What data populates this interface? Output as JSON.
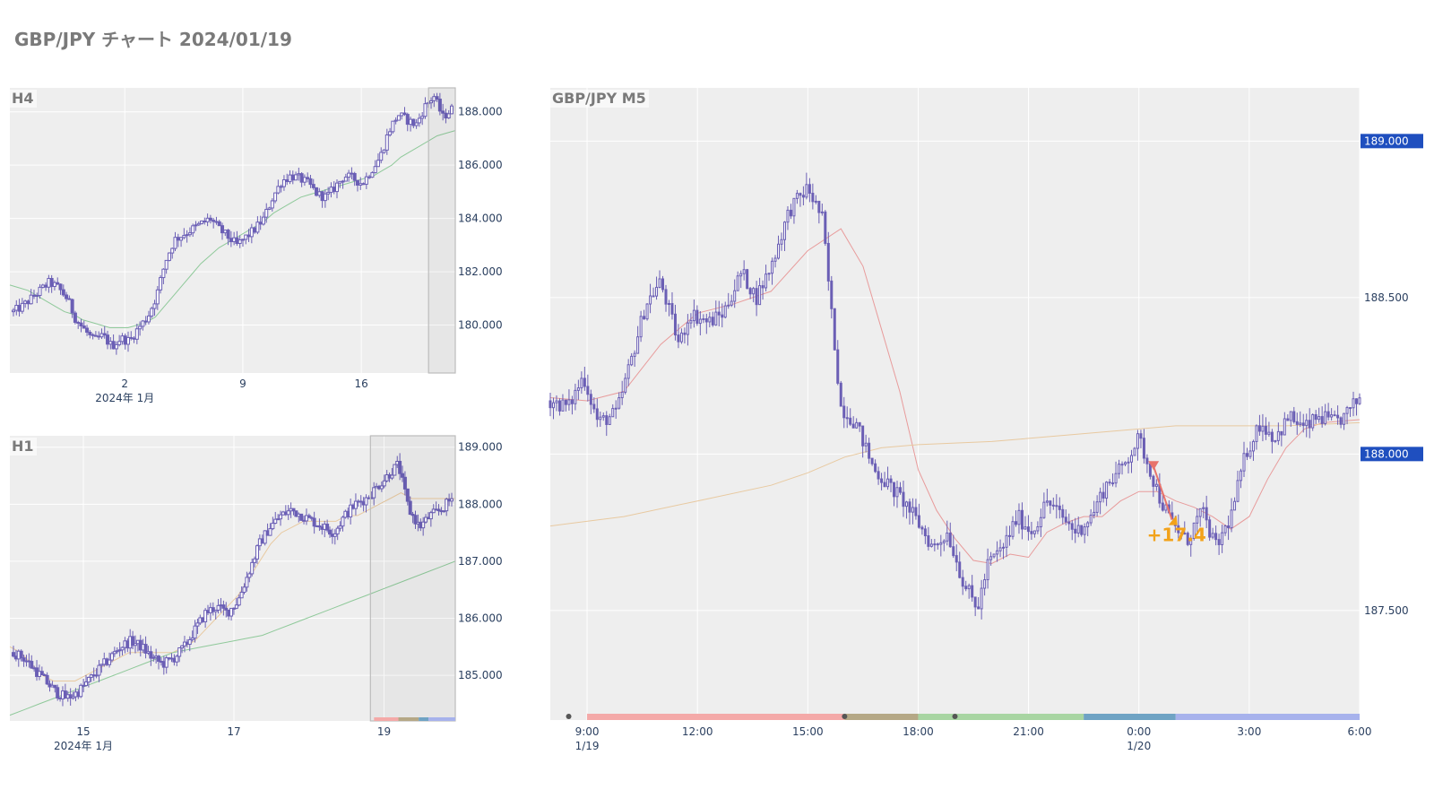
{
  "page": {
    "title": "GBP/JPY チャート 2024/01/19"
  },
  "colors": {
    "candle": "#6b5fb5",
    "plot_bg": "#eeeeee",
    "grid": "#ffffff",
    "ma_green": "#8fc99a",
    "ma_orange": "#e8c9a0",
    "ma_red": "#e89b9b",
    "price_badge": "#1f4fbf",
    "annotation": "#f2a21a",
    "entry_marker": "#e8736b",
    "session_bar": [
      "#f4a9a8",
      "#b5a886",
      "#a8d5a2",
      "#6fa3c4",
      "#a7b2ec"
    ]
  },
  "chart_data": [
    {
      "id": "h4",
      "type": "candlestick",
      "title": "H4",
      "xlabel": "",
      "ylabel": "",
      "x_tick_labels": [
        "2",
        "9",
        "16"
      ],
      "x_sublabel": "2024年 1月",
      "y_tick_labels": [
        "188.000",
        "186.000",
        "184.000",
        "182.000",
        "180.000"
      ],
      "ylim": [
        178.2,
        188.9
      ],
      "legend": "none",
      "grid": true,
      "close_path": [
        180.5,
        180.7,
        181.0,
        181.3,
        181.6,
        181.4,
        181.0,
        180.2,
        179.8,
        179.4,
        179.6,
        179.2,
        179.5,
        179.4,
        179.9,
        180.3,
        181.1,
        182.4,
        183.2,
        183.4,
        183.6,
        183.8,
        184.0,
        183.6,
        183.3,
        183.0,
        183.3,
        183.6,
        184.0,
        184.8,
        185.4,
        185.6,
        185.5,
        185.3,
        184.9,
        184.8,
        185.2,
        185.6,
        185.5,
        185.3,
        185.8,
        186.3,
        187.3,
        187.9,
        187.7,
        187.5,
        188.2,
        188.6,
        187.8,
        188.1
      ],
      "ma": {
        "color": "green",
        "path": [
          181.5,
          181.4,
          181.3,
          181.1,
          180.9,
          180.7,
          180.5,
          180.4,
          180.2,
          180.1,
          180.0,
          179.9,
          179.9,
          179.9,
          180.0,
          180.1,
          180.3,
          180.7,
          181.1,
          181.5,
          181.9,
          182.3,
          182.6,
          182.9,
          183.1,
          183.3,
          183.5,
          183.7,
          183.9,
          184.2,
          184.4,
          184.6,
          184.8,
          184.9,
          185.0,
          185.1,
          185.2,
          185.3,
          185.4,
          185.5,
          185.6,
          185.8,
          186.0,
          186.3,
          186.5,
          186.7,
          186.9,
          187.1,
          187.2,
          187.3
        ]
      },
      "highlight_range": [
        47,
        50
      ]
    },
    {
      "id": "h1",
      "type": "candlestick",
      "title": "H1",
      "xlabel": "",
      "ylabel": "",
      "x_tick_labels": [
        "15",
        "17",
        "19"
      ],
      "x_sublabel": "2024年 1月",
      "y_tick_labels": [
        "189.000",
        "188.000",
        "187.000",
        "186.000",
        "185.000"
      ],
      "ylim": [
        184.2,
        189.2
      ],
      "legend": "none",
      "grid": true,
      "close_path": [
        185.4,
        185.3,
        185.1,
        184.9,
        184.7,
        184.6,
        184.7,
        184.9,
        185.1,
        185.3,
        185.5,
        185.6,
        185.5,
        185.3,
        185.2,
        185.3,
        185.5,
        185.8,
        186.1,
        186.2,
        186.1,
        186.3,
        186.8,
        187.3,
        187.6,
        187.8,
        187.9,
        187.8,
        187.7,
        187.6,
        187.5,
        187.8,
        188.0,
        188.1,
        188.3,
        188.5,
        188.7,
        187.9,
        187.6,
        187.8,
        187.9,
        188.1
      ],
      "ma": [
        {
          "color": "orange",
          "path": [
            185.5,
            185.4,
            185.2,
            185.0,
            184.9,
            184.9,
            184.9,
            185.0,
            185.1,
            185.2,
            185.3,
            185.4,
            185.4,
            185.4,
            185.4,
            185.4,
            185.5,
            185.6,
            185.8,
            186.0,
            186.2,
            186.4,
            186.7,
            187.0,
            187.3,
            187.5,
            187.6,
            187.7,
            187.7,
            187.7,
            187.7,
            187.8,
            187.8,
            187.9,
            188.0,
            188.1,
            188.2,
            188.1,
            188.1,
            188.1,
            188.1,
            188.1
          ]
        },
        {
          "color": "green",
          "path": [
            184.3,
            184.4,
            184.5,
            184.6,
            184.7,
            184.8,
            184.9,
            185.0,
            185.1,
            185.2,
            185.3,
            185.4,
            185.45,
            185.5,
            185.55,
            185.6,
            185.65,
            185.7,
            185.8,
            185.9,
            186.0,
            186.1,
            186.2,
            186.3,
            186.4,
            186.5,
            186.6,
            186.7,
            186.8,
            186.9,
            187.0
          ]
        }
      ],
      "highlight_range": [
        34,
        41
      ],
      "session_bar": true
    },
    {
      "id": "m5",
      "type": "candlestick",
      "title": "GBP/JPY M5",
      "xlabel": "",
      "ylabel": "",
      "x_tick_labels": [
        "9:00",
        "12:00",
        "15:00",
        "18:00",
        "21:00",
        "0:00",
        "3:00",
        "6:00"
      ],
      "x_tick_sublabels": [
        "1/19",
        "",
        "",
        "",
        "",
        "1/20",
        "",
        ""
      ],
      "y_tick_labels": [
        "189.000",
        "188.500",
        "188.000",
        "187.500"
      ],
      "y_badges": [
        "189.000",
        "188.000"
      ],
      "ylim": [
        187.15,
        189.17
      ],
      "legend": "none",
      "grid": true,
      "time_range_hours": [
        8.0,
        30.0
      ],
      "close_path": [
        [
          8.0,
          188.17
        ],
        [
          8.5,
          188.15
        ],
        [
          8.9,
          188.25
        ],
        [
          9.3,
          188.1
        ],
        [
          9.8,
          188.13
        ],
        [
          10.2,
          188.3
        ],
        [
          10.6,
          188.48
        ],
        [
          11.0,
          188.55
        ],
        [
          11.5,
          188.35
        ],
        [
          11.8,
          188.45
        ],
        [
          12.3,
          188.42
        ],
        [
          12.7,
          188.45
        ],
        [
          13.2,
          188.58
        ],
        [
          13.6,
          188.5
        ],
        [
          14.0,
          188.6
        ],
        [
          14.5,
          188.78
        ],
        [
          15.0,
          188.85
        ],
        [
          15.4,
          188.75
        ],
        [
          15.6,
          188.5
        ],
        [
          15.9,
          188.15
        ],
        [
          16.3,
          188.1
        ],
        [
          16.8,
          187.95
        ],
        [
          17.2,
          187.9
        ],
        [
          17.6,
          187.85
        ],
        [
          18.0,
          187.78
        ],
        [
          18.4,
          187.7
        ],
        [
          18.8,
          187.75
        ],
        [
          19.2,
          187.6
        ],
        [
          19.6,
          187.5
        ],
        [
          19.9,
          187.65
        ],
        [
          20.3,
          187.7
        ],
        [
          20.7,
          187.8
        ],
        [
          21.1,
          187.75
        ],
        [
          21.5,
          187.85
        ],
        [
          21.9,
          187.8
        ],
        [
          22.3,
          187.75
        ],
        [
          22.7,
          187.8
        ],
        [
          23.1,
          187.9
        ],
        [
          23.5,
          187.95
        ],
        [
          24.0,
          188.05
        ],
        [
          24.3,
          187.95
        ],
        [
          24.6,
          187.85
        ],
        [
          24.9,
          187.78
        ],
        [
          25.3,
          187.72
        ],
        [
          25.7,
          187.82
        ],
        [
          26.1,
          187.7
        ],
        [
          26.5,
          187.8
        ],
        [
          26.9,
          188.0
        ],
        [
          27.3,
          188.1
        ],
        [
          27.7,
          188.05
        ],
        [
          28.1,
          188.12
        ],
        [
          28.5,
          188.08
        ],
        [
          28.9,
          188.12
        ],
        [
          29.3,
          188.1
        ],
        [
          29.6,
          188.12
        ],
        [
          30.0,
          188.18
        ]
      ],
      "ma": [
        {
          "color": "red",
          "path": [
            [
              8.0,
              188.18
            ],
            [
              9.0,
              188.17
            ],
            [
              10.0,
              188.2
            ],
            [
              11.0,
              188.35
            ],
            [
              12.0,
              188.45
            ],
            [
              13.0,
              188.48
            ],
            [
              14.0,
              188.52
            ],
            [
              15.0,
              188.65
            ],
            [
              15.9,
              188.72
            ],
            [
              16.5,
              188.6
            ],
            [
              17.0,
              188.4
            ],
            [
              17.5,
              188.2
            ],
            [
              18.0,
              187.95
            ],
            [
              18.5,
              187.82
            ],
            [
              19.0,
              187.73
            ],
            [
              19.5,
              187.66
            ],
            [
              20.0,
              187.65
            ],
            [
              20.5,
              187.68
            ],
            [
              21.0,
              187.67
            ],
            [
              21.5,
              187.75
            ],
            [
              22.0,
              187.78
            ],
            [
              22.5,
              187.8
            ],
            [
              23.0,
              187.8
            ],
            [
              23.5,
              187.85
            ],
            [
              24.0,
              187.88
            ],
            [
              24.5,
              187.88
            ],
            [
              25.0,
              187.85
            ],
            [
              25.5,
              187.83
            ],
            [
              26.0,
              187.8
            ],
            [
              26.5,
              187.76
            ],
            [
              27.0,
              187.8
            ],
            [
              27.5,
              187.92
            ],
            [
              28.0,
              188.02
            ],
            [
              28.5,
              188.08
            ],
            [
              29.0,
              188.1
            ],
            [
              30.0,
              188.11
            ]
          ]
        },
        {
          "color": "orange",
          "path": [
            [
              8.0,
              187.77
            ],
            [
              10.0,
              187.8
            ],
            [
              12.0,
              187.85
            ],
            [
              14.0,
              187.9
            ],
            [
              15.0,
              187.94
            ],
            [
              16.0,
              187.99
            ],
            [
              17.0,
              188.02
            ],
            [
              18.0,
              188.03
            ],
            [
              20.0,
              188.04
            ],
            [
              22.0,
              188.06
            ],
            [
              24.0,
              188.08
            ],
            [
              25.0,
              188.09
            ],
            [
              27.0,
              188.09
            ],
            [
              28.0,
              188.09
            ],
            [
              30.0,
              188.1
            ]
          ]
        }
      ],
      "trade": {
        "entry": [
          24.4,
          187.96
        ],
        "exit": [
          24.9,
          187.79
        ],
        "label": "+17.4"
      },
      "session_segments": [
        {
          "from": 9.0,
          "to": 16.0,
          "color": 0
        },
        {
          "from": 16.0,
          "to": 18.0,
          "color": 1
        },
        {
          "from": 18.0,
          "to": 22.5,
          "color": 2
        },
        {
          "from": 22.5,
          "to": 25.0,
          "color": 3
        },
        {
          "from": 25.0,
          "to": 30.0,
          "color": 4
        }
      ],
      "session_dots": [
        8.5,
        16.0,
        19.0
      ]
    }
  ]
}
